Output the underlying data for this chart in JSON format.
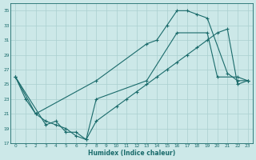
{
  "xlabel": "Humidex (Indice chaleur)",
  "background_color": "#cce8e8",
  "grid_color": "#aacfcf",
  "line_color": "#1a6b6b",
  "xlim": [
    -0.5,
    23.5
  ],
  "ylim": [
    17,
    36
  ],
  "yticks": [
    17,
    19,
    21,
    23,
    25,
    27,
    29,
    31,
    33,
    35
  ],
  "xticks": [
    0,
    1,
    2,
    3,
    4,
    5,
    6,
    7,
    8,
    9,
    10,
    11,
    12,
    13,
    14,
    15,
    16,
    17,
    18,
    19,
    20,
    21,
    22,
    23
  ],
  "line1_x": [
    0,
    1,
    2,
    8,
    13,
    14,
    15,
    16,
    17,
    18,
    19,
    21,
    22,
    23
  ],
  "line1_y": [
    26,
    23,
    21,
    25.5,
    30.5,
    31,
    33,
    35,
    35,
    34.5,
    34,
    26.5,
    25.5,
    25.5
  ],
  "line2_x": [
    0,
    3,
    4,
    5,
    6,
    7,
    8,
    13,
    16,
    19,
    20,
    22,
    23
  ],
  "line2_y": [
    26,
    19.5,
    20,
    18.5,
    18.5,
    17.5,
    23,
    25.5,
    32,
    32,
    26,
    26,
    25.5
  ],
  "line3_x": [
    0,
    2,
    3,
    4,
    5,
    6,
    7,
    8,
    10,
    11,
    12,
    13,
    14,
    15,
    16,
    17,
    18,
    19,
    20,
    21,
    22,
    23
  ],
  "line3_y": [
    26,
    21,
    20,
    19.5,
    19,
    18,
    17.5,
    20,
    22,
    23,
    24,
    25,
    26,
    27,
    28,
    29,
    30,
    31,
    32,
    32.5,
    25,
    25.5
  ]
}
